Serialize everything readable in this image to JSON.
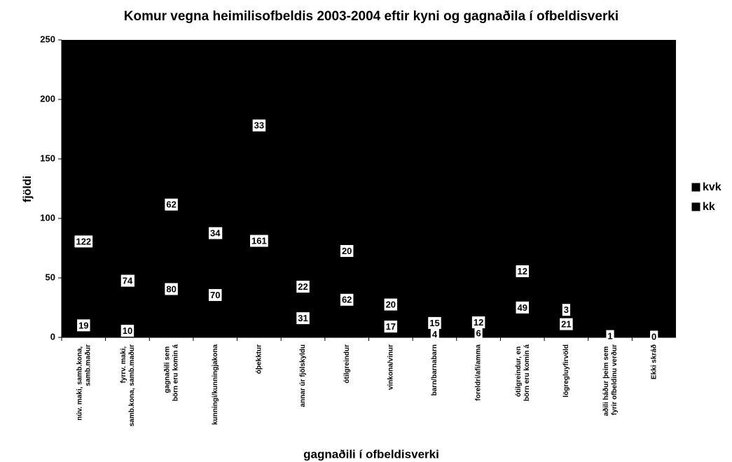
{
  "chart_data": {
    "type": "stacked_bar",
    "title": "Komur vegna heimilisofbeldis 2003-2004 eftir kyni og gagnaðila í ofbeldisverki",
    "x_label": "gagnaðili í ofbeldisverki",
    "y_label": "fjöldi",
    "categories": [
      "núv. maki, samb.kona, samb.maður",
      "fyrrv. maki, samb.kona, samb.maður",
      "gagnaðili sem börn eru komin á",
      "kunningi/kunningjakona",
      "óþekktur",
      "annar úr fjölskyldu",
      "ótilgreindur",
      "vinkona/vinur",
      "barn/barnabarn",
      "foreldri/afi/amma",
      "ótilgreindur, en börn eru komin á",
      "lögregluyfirvöld",
      "aðili háður þeim sem fyrir ofbeldinu verður",
      "Ekki skráð"
    ],
    "series": [
      {
        "name": "kk",
        "color": "#000000",
        "values": [
          19,
          10,
          80,
          70,
          161,
          31,
          62,
          17,
          4,
          6,
          49,
          21,
          1,
          0
        ]
      },
      {
        "name": "kvk",
        "color": "#000000",
        "values": [
          122,
          74,
          62,
          34,
          33,
          22,
          20,
          20,
          15,
          12,
          12,
          3,
          null,
          null
        ]
      }
    ],
    "ylim": [
      0,
      250
    ],
    "yticks": [
      0,
      50,
      100,
      150,
      200,
      250
    ],
    "legend": "right"
  }
}
